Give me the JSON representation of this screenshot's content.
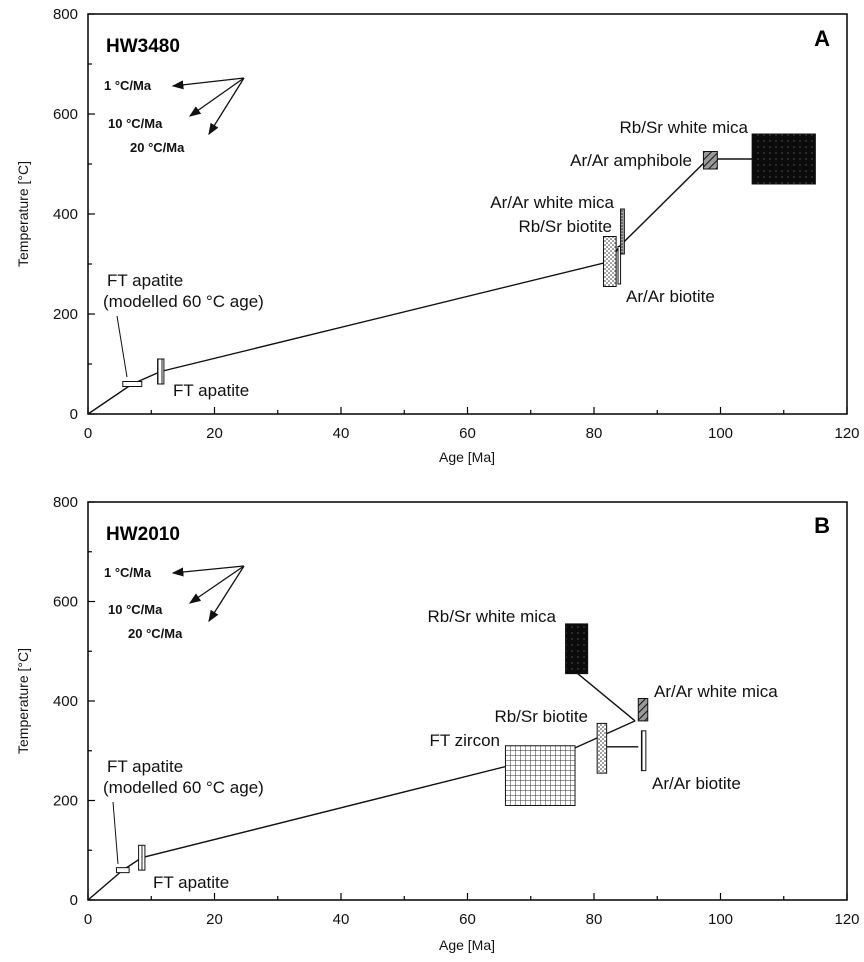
{
  "chart_data": [
    {
      "type": "scatter",
      "panel": "A",
      "sample": "HW3480",
      "xlabel": "Age [Ma]",
      "ylabel": "Temperature [°C]",
      "xlim": [
        0,
        120
      ],
      "ylim": [
        0,
        800
      ],
      "xticks": [
        "0",
        "20",
        "40",
        "60",
        "80",
        "100",
        "120"
      ],
      "yticks": [
        "0",
        "200",
        "400",
        "600",
        "800"
      ],
      "rate_labels": [
        "1 °C/Ma",
        "10 °C/Ma",
        "20 °C/Ma"
      ],
      "cooling_path": [
        [
          0,
          0
        ],
        [
          7,
          60
        ],
        [
          11.5,
          85
        ],
        [
          82.5,
          305
        ],
        [
          84,
          335
        ],
        [
          98,
          510
        ],
        [
          108,
          510
        ]
      ],
      "boxes": [
        {
          "label": "FT apatite",
          "x": [
            11,
            12
          ],
          "y": [
            60,
            110
          ],
          "fill": "vlines"
        },
        {
          "label": "FT apatite (modelled 60 °C age)",
          "x": [
            5.5,
            8.5
          ],
          "y": [
            55,
            65
          ],
          "fill": "open"
        },
        {
          "label": "Rb/Sr biotite",
          "x": [
            81.5,
            83.5
          ],
          "y": [
            255,
            355
          ],
          "fill": "dots"
        },
        {
          "label": "Ar/Ar biotite",
          "x": [
            83.8,
            84.2
          ],
          "y": [
            260,
            335
          ],
          "fill": "vlines"
        },
        {
          "label": "Ar/Ar white mica",
          "x": [
            84.2,
            84.8
          ],
          "y": [
            320,
            410
          ],
          "fill": "dense"
        },
        {
          "label": "Ar/Ar amphibole",
          "x": [
            97.3,
            99.5
          ],
          "y": [
            490,
            525
          ],
          "fill": "hatch"
        },
        {
          "label": "Rb/Sr white mica",
          "x": [
            105,
            115
          ],
          "y": [
            460,
            560
          ],
          "fill": "black"
        }
      ],
      "annotations": [
        "Rb/Sr white mica",
        "Ar/Ar amphibole",
        "Ar/Ar white mica",
        "Rb/Sr biotite",
        "Ar/Ar biotite",
        "FT apatite",
        "(modelled 60 °C age)",
        "FT apatite"
      ]
    },
    {
      "type": "scatter",
      "panel": "B",
      "sample": "HW2010",
      "xlabel": "Age [Ma]",
      "ylabel": "Temperature [°C]",
      "xlim": [
        0,
        120
      ],
      "ylim": [
        0,
        800
      ],
      "xticks": [
        "0",
        "20",
        "40",
        "60",
        "80",
        "100",
        "120"
      ],
      "yticks": [
        "0",
        "200",
        "400",
        "600",
        "800"
      ],
      "rate_labels": [
        "1 °C/Ma",
        "10 °C/Ma",
        "20 °C/Ma"
      ],
      "cooling_path": [
        [
          0,
          0
        ],
        [
          5.5,
          60
        ],
        [
          8.5,
          85
        ],
        [
          76,
          300
        ],
        [
          86.5,
          360
        ]
      ],
      "extra_paths": [
        [
          [
            76,
            470
          ],
          [
            86.5,
            360
          ]
        ],
        [
          [
            81,
            308
          ],
          [
            87,
            308
          ]
        ]
      ],
      "boxes": [
        {
          "label": "FT apatite",
          "x": [
            8,
            9
          ],
          "y": [
            60,
            110
          ],
          "fill": "vlines"
        },
        {
          "label": "FT apatite (modelled 60 °C age)",
          "x": [
            4.5,
            6.5
          ],
          "y": [
            55,
            65
          ],
          "fill": "open"
        },
        {
          "label": "FT zircon",
          "x": [
            66,
            77
          ],
          "y": [
            190,
            310
          ],
          "fill": "grid"
        },
        {
          "label": "Rb/Sr biotite",
          "x": [
            80.5,
            82
          ],
          "y": [
            255,
            355
          ],
          "fill": "dots"
        },
        {
          "label": "Ar/Ar biotite",
          "x": [
            87.5,
            88.2
          ],
          "y": [
            260,
            340
          ],
          "fill": "vlines"
        },
        {
          "label": "Ar/Ar white mica",
          "x": [
            87,
            88.5
          ],
          "y": [
            360,
            405
          ],
          "fill": "hatch"
        },
        {
          "label": "Rb/Sr white mica",
          "x": [
            75.5,
            79
          ],
          "y": [
            455,
            555
          ],
          "fill": "black"
        }
      ],
      "annotations": [
        "Rb/Sr white mica",
        "Ar/Ar white mica",
        "Rb/Sr biotite",
        "FT zircon",
        "Ar/Ar biotite",
        "FT apatite",
        "(modelled 60 °C age)",
        "FT apatite"
      ]
    }
  ]
}
